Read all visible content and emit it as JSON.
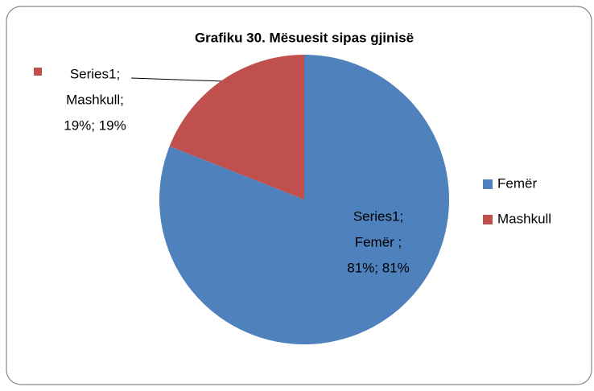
{
  "chart_data": {
    "type": "pie",
    "title": "Grafiku 30. Mësuesit sipas gjinisë",
    "categories": [
      "Femër",
      "Mashkull"
    ],
    "values": [
      81,
      19
    ],
    "colors": [
      "#4f81bd",
      "#c0504d"
    ],
    "value_labels": [
      [
        "Series1;",
        "Femër ;",
        "81%; 81%"
      ],
      [
        "Series1;",
        "Mashkull;",
        "19%; 19%"
      ]
    ],
    "legend": "right"
  }
}
